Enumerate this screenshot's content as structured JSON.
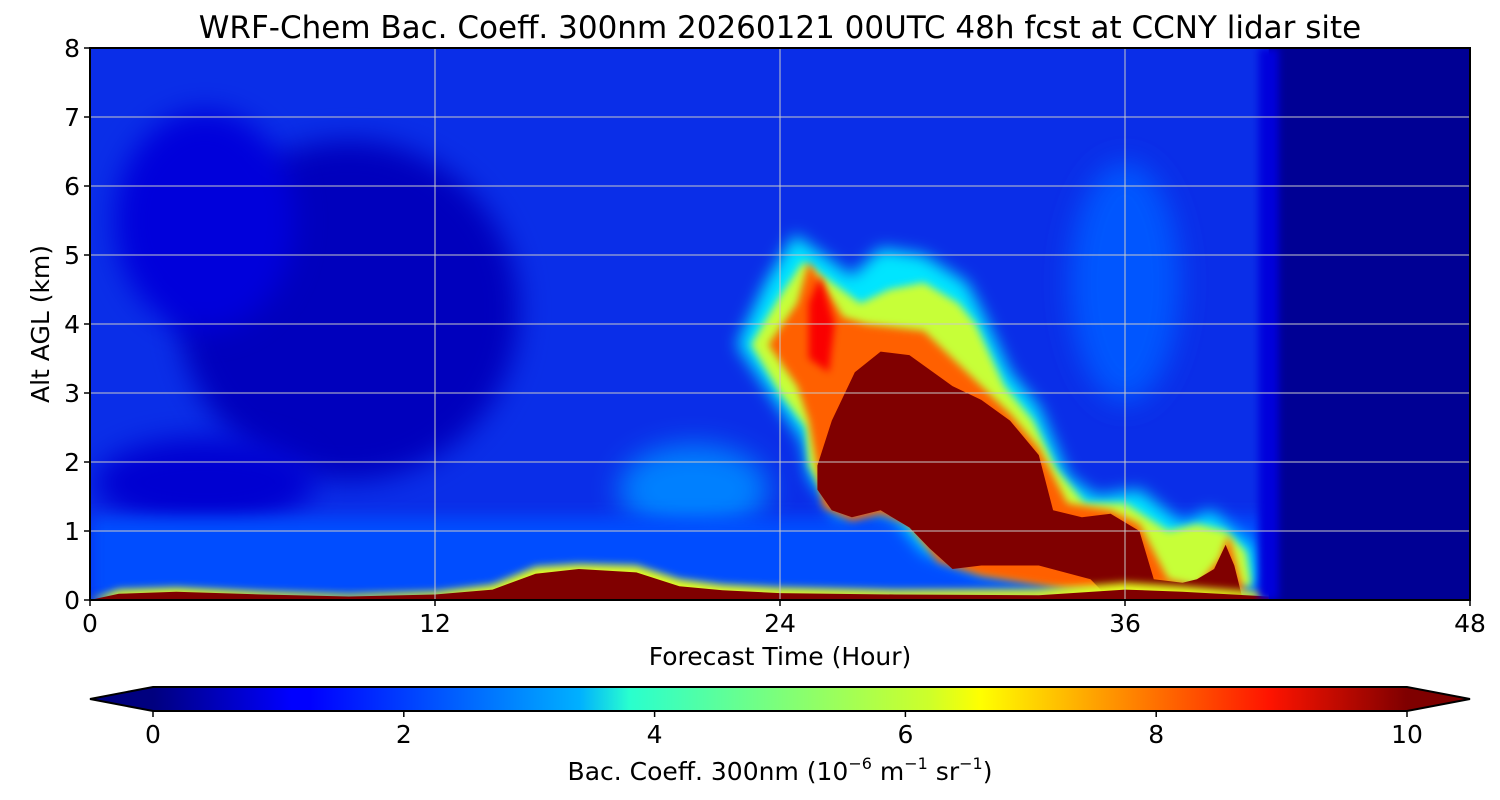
{
  "chart_data": {
    "type": "heatmap",
    "title": "WRF-Chem Bac. Coeff. 300nm  20260121 00UTC 48h fcst at CCNY lidar site",
    "xlabel": "Forecast Time (Hour)",
    "ylabel": "Alt AGL (km)",
    "xlim": [
      0,
      48
    ],
    "ylim": [
      0,
      8
    ],
    "xticks": [
      "0",
      "12",
      "24",
      "36",
      "48"
    ],
    "yticks": [
      "0",
      "1",
      "2",
      "3",
      "4",
      "5",
      "6",
      "7",
      "8"
    ],
    "grid": true,
    "colormap": "jet",
    "colorbar": {
      "label_main": "Bac. Coeff. 300nm  (10",
      "exp1": "−6",
      "label_mid": " m",
      "exp2": "−1",
      "label_mid2": " sr",
      "exp3": "−1",
      "label_end": ")",
      "range": [
        0,
        10
      ],
      "ticks": [
        "0",
        "2",
        "4",
        "6",
        "8",
        "10"
      ],
      "extend": "both"
    },
    "background_value": 1.4,
    "no_data_after_hour": 41,
    "no_data_value": 0.2,
    "features": [
      {
        "name": "surface layer",
        "x_range": [
          0,
          41
        ],
        "top_km": 0.1,
        "value": 10
      },
      {
        "name": "near-surface aerosol",
        "x_range": [
          12,
          22
        ],
        "top_km": 0.45,
        "value": 10
      },
      {
        "name": "elevated plume core",
        "x_range": [
          25,
          37
        ],
        "z_range": [
          0.3,
          4.0
        ],
        "value": 10
      },
      {
        "name": "plume upper edge",
        "x_range": [
          22,
          33
        ],
        "z_range": [
          2.0,
          5.3
        ],
        "value": 6.5
      },
      {
        "name": "lower plume tail",
        "x_range": [
          33,
          41
        ],
        "z_range": [
          0.0,
          1.5
        ],
        "value": 9
      }
    ]
  }
}
